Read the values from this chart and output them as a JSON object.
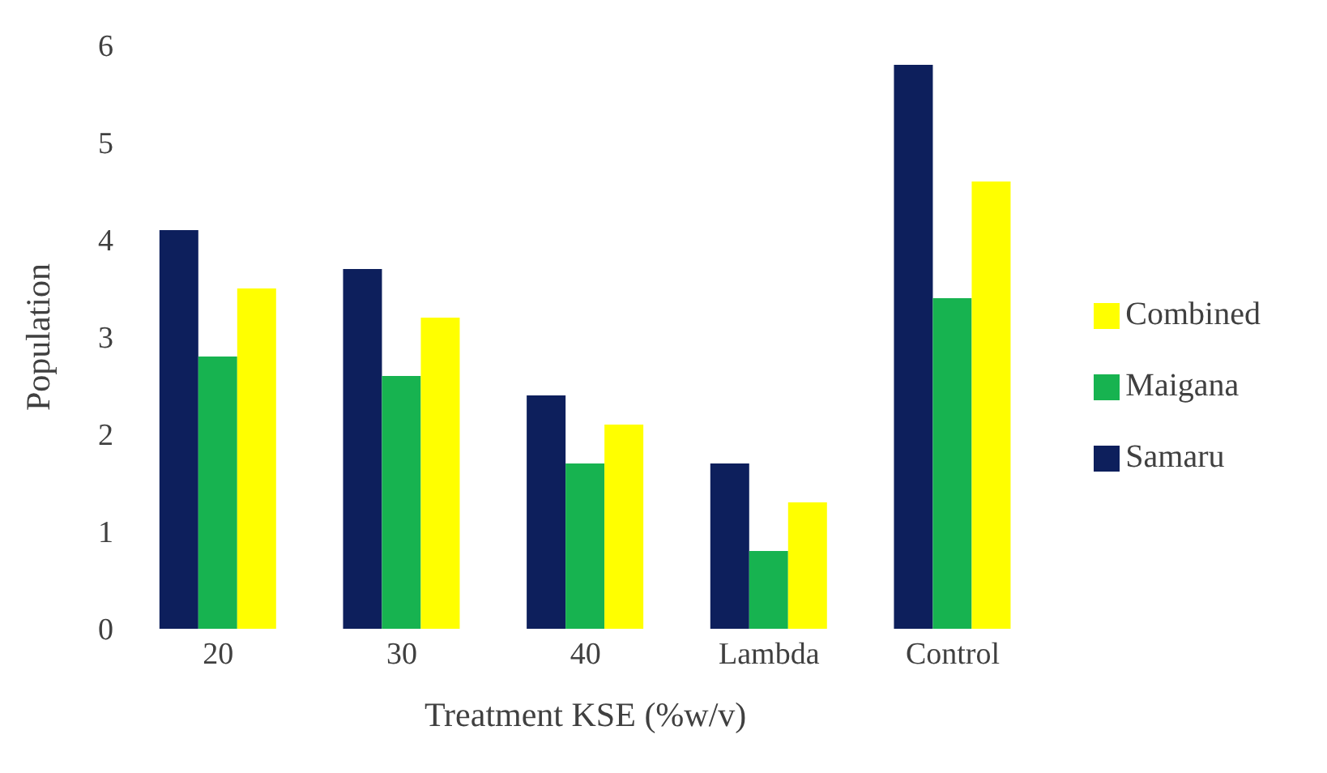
{
  "chart_data": {
    "type": "bar",
    "xlabel": "Treatment KSE (%w/v)",
    "ylabel": "Population",
    "categories": [
      "20",
      "30",
      "40",
      "Lambda",
      "Control"
    ],
    "series": [
      {
        "name": "Samaru",
        "color": "#0d1f5c",
        "values": [
          4.1,
          3.7,
          2.4,
          1.7,
          5.8
        ]
      },
      {
        "name": "Maigana",
        "color": "#17b350",
        "values": [
          2.8,
          2.6,
          1.7,
          0.8,
          3.4
        ]
      },
      {
        "name": "Combined",
        "color": "#ffff00",
        "values": [
          3.5,
          3.2,
          2.1,
          1.3,
          4.6
        ]
      }
    ],
    "ylim": [
      0,
      6
    ],
    "yticks": [
      0,
      1,
      2,
      3,
      4,
      5,
      6
    ],
    "grid": false,
    "legend": "right"
  }
}
